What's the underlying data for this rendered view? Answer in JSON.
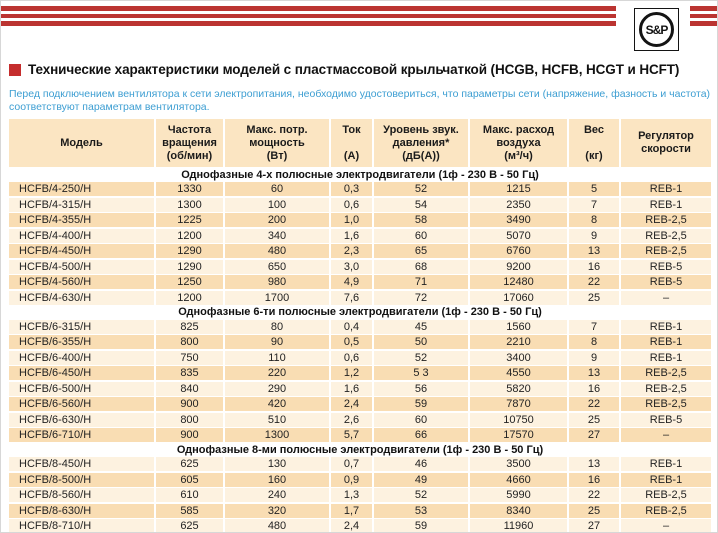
{
  "logo": {
    "text": "S&P"
  },
  "title": {
    "text": "Технические характеристики моделей с пластмассовой крыльчаткой (HCGB, HCFB, HCGT и HCFT)"
  },
  "intro": "Перед подключением вентилятора к сети электропитания, необходимо удостовериться, что параметры сети (напряжение, фазность и частота) соответствуют параметрам вентилятора.",
  "table": {
    "columns": [
      {
        "lines": [
          "Модель"
        ]
      },
      {
        "lines": [
          "Частота",
          "вращения",
          "(об/мин)"
        ]
      },
      {
        "lines": [
          "Макс. потр.",
          "мощность",
          "(Вт)"
        ]
      },
      {
        "lines": [
          "Ток",
          "",
          "(А)"
        ]
      },
      {
        "lines": [
          "Уровень звук.",
          "давления*",
          "(дБ(А))"
        ]
      },
      {
        "lines": [
          "Макс. расход",
          "воздуха",
          "(м³/ч)"
        ]
      },
      {
        "lines": [
          "Вес",
          "",
          "(кг)"
        ]
      },
      {
        "lines": [
          "Регулятор",
          "скорости"
        ]
      }
    ],
    "sections": [
      {
        "header": "Однофазные 4-х полюсные электродвигатели (1ф - 230 В - 50 Гц)",
        "rows": [
          [
            "HCFB/4-250/H",
            "1330",
            "60",
            "0,3",
            "52",
            "1215",
            "5",
            "REB-1"
          ],
          [
            "HCFB/4-315/H",
            "1300",
            "100",
            "0,6",
            "54",
            "2350",
            "7",
            "REB-1"
          ],
          [
            "HCFB/4-355/H",
            "1225",
            "200",
            "1,0",
            "58",
            "3490",
            "8",
            "REB-2,5"
          ],
          [
            "HCFB/4-400/H",
            "1200",
            "340",
            "1,6",
            "60",
            "5070",
            "9",
            "REB-2,5"
          ],
          [
            "HCFB/4-450/H",
            "1290",
            "480",
            "2,3",
            "65",
            "6760",
            "13",
            "REB-2,5"
          ],
          [
            "HCFB/4-500/H",
            "1290",
            "650",
            "3,0",
            "68",
            "9200",
            "16",
            "REB-5"
          ],
          [
            "HCFB/4-560/H",
            "1250",
            "980",
            "4,9",
            "71",
            "12480",
            "22",
            "REB-5"
          ],
          [
            "HCFB/4-630/H",
            "1200",
            "1700",
            "7,6",
            "72",
            "17060",
            "25",
            "–"
          ]
        ]
      },
      {
        "header": "Однофазные 6-ти полюсные электродвигатели (1ф - 230 В - 50 Гц)",
        "rows": [
          [
            "HCFB/6-315/H",
            "825",
            "80",
            "0,4",
            "45",
            "1560",
            "7",
            "REB-1"
          ],
          [
            "HCFB/6-355/H",
            "800",
            "90",
            "0,5",
            "50",
            "2210",
            "8",
            "REB-1"
          ],
          [
            "HCFB/6-400/H",
            "750",
            "110",
            "0,6",
            "52",
            "3400",
            "9",
            "REB-1"
          ],
          [
            "HCFB/6-450/H",
            "835",
            "220",
            "1,2",
            "5 3",
            "4550",
            "13",
            "REB-2,5"
          ],
          [
            "HCFB/6-500/H",
            "840",
            "290",
            "1,6",
            "56",
            "5820",
            "16",
            "REB-2,5"
          ],
          [
            "HCFB/6-560/H",
            "900",
            "420",
            "2,4",
            "59",
            "7870",
            "22",
            "REB-2,5"
          ],
          [
            "HCFB/6-630/H",
            "800",
            "510",
            "2,6",
            "60",
            "10750",
            "25",
            "REB-5"
          ],
          [
            "HCFB/6-710/H",
            "900",
            "1300",
            "5,7",
            "66",
            "17570",
            "27",
            "–"
          ]
        ]
      },
      {
        "header": "Однофазные 8-ми полюсные электродвигатели (1ф - 230 В - 50 Гц)",
        "rows": [
          [
            "HCFB/8-450/H",
            "625",
            "130",
            "0,7",
            "46",
            "3500",
            "13",
            "REB-1"
          ],
          [
            "HCFB/8-500/H",
            "605",
            "160",
            "0,9",
            "49",
            "4660",
            "16",
            "REB-1"
          ],
          [
            "HCFB/8-560/H",
            "610",
            "240",
            "1,3",
            "52",
            "5990",
            "22",
            "REB-2,5"
          ],
          [
            "HCFB/8-630/H",
            "585",
            "320",
            "1,7",
            "53",
            "8340",
            "25",
            "REB-2,5"
          ],
          [
            "HCFB/8-710/H",
            "625",
            "480",
            "2,4",
            "59",
            "11960",
            "27",
            "–"
          ]
        ]
      }
    ]
  },
  "colors": {
    "stripe_red": "#bb3431",
    "bullet_red": "#c52d2d",
    "header_bg": "#fbe5c2",
    "row_dark": "#f9ddb3",
    "row_light": "#fdf2e0",
    "intro_blue": "#3d9ed2"
  }
}
